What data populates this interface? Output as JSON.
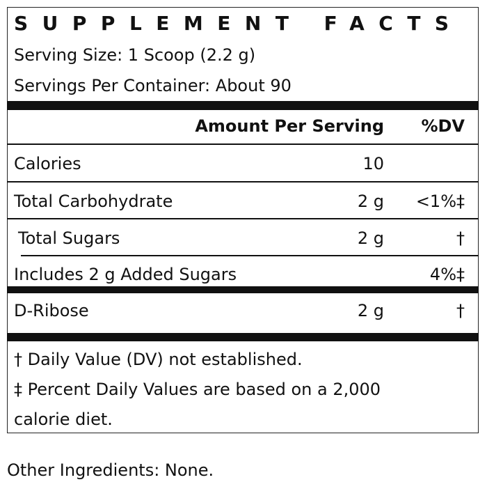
{
  "facts": {
    "title": "SUPPLEMENT FACTS",
    "serving_size": "Serving Size: 1 Scoop (2.2 g)",
    "servings_per_container": "Servings Per Container: About 90",
    "header": {
      "amount_label": "Amount Per Serving",
      "dv_label": "%DV"
    },
    "rows": [
      {
        "name": "Calories",
        "amount": "10",
        "dv": ""
      },
      {
        "name": "Total Carbohydrate",
        "amount": "2 g",
        "dv": "<1%‡"
      },
      {
        "name": "Total Sugars",
        "amount": "2 g",
        "dv": "†"
      },
      {
        "name": "Includes 2 g Added Sugars",
        "amount": "",
        "dv": "4%‡"
      },
      {
        "name": "D-Ribose",
        "amount": "2 g",
        "dv": "†"
      }
    ],
    "footnotes": [
      "† Daily Value (DV) not established.",
      "‡ Percent Daily Values are based on a 2,000",
      "calorie diet."
    ]
  },
  "other_ingredients": "Other Ingredients: None."
}
